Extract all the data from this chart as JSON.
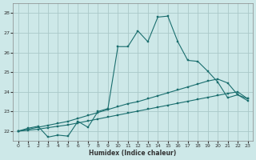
{
  "xlabel": "Humidex (Indice chaleur)",
  "xlim": [
    -0.5,
    23.5
  ],
  "ylim": [
    21.5,
    28.5
  ],
  "xticks": [
    0,
    1,
    2,
    3,
    4,
    5,
    6,
    7,
    8,
    9,
    10,
    11,
    12,
    13,
    14,
    15,
    16,
    17,
    18,
    19,
    20,
    21,
    22,
    23
  ],
  "yticks": [
    22,
    23,
    24,
    25,
    26,
    27,
    28
  ],
  "bg_color": "#cde8e8",
  "grid_color": "#aac8c8",
  "line_color": "#1a6e6e",
  "line_main_x": [
    0,
    1,
    2,
    3,
    4,
    5,
    6,
    7,
    8,
    9,
    10,
    11,
    12,
    13,
    14,
    15,
    16,
    17,
    18,
    19,
    20,
    21,
    22,
    23
  ],
  "line_main_y": [
    22.0,
    22.15,
    22.25,
    21.7,
    21.8,
    21.75,
    22.5,
    22.2,
    23.0,
    23.15,
    26.3,
    26.3,
    27.1,
    26.55,
    27.8,
    27.85,
    26.55,
    25.6,
    25.55,
    25.05,
    24.5,
    23.7,
    23.85,
    23.55
  ],
  "line_mid_x": [
    0,
    1,
    2,
    3,
    4,
    5,
    6,
    7,
    8,
    9,
    10,
    11,
    12,
    13,
    14,
    15,
    16,
    17,
    18,
    19,
    20,
    21,
    22,
    23
  ],
  "line_mid_y": [
    22.0,
    22.1,
    22.2,
    22.3,
    22.4,
    22.5,
    22.65,
    22.8,
    22.95,
    23.1,
    23.25,
    23.4,
    23.5,
    23.65,
    23.8,
    23.95,
    24.1,
    24.25,
    24.4,
    24.55,
    24.65,
    24.45,
    23.85,
    23.65
  ],
  "line_low_x": [
    0,
    1,
    2,
    3,
    4,
    5,
    6,
    7,
    8,
    9,
    10,
    11,
    12,
    13,
    14,
    15,
    16,
    17,
    18,
    19,
    20,
    21,
    22,
    23
  ],
  "line_low_y": [
    22.0,
    22.05,
    22.1,
    22.18,
    22.25,
    22.32,
    22.42,
    22.52,
    22.62,
    22.72,
    22.82,
    22.92,
    23.02,
    23.12,
    23.22,
    23.32,
    23.42,
    23.52,
    23.62,
    23.72,
    23.82,
    23.92,
    24.0,
    23.65
  ]
}
